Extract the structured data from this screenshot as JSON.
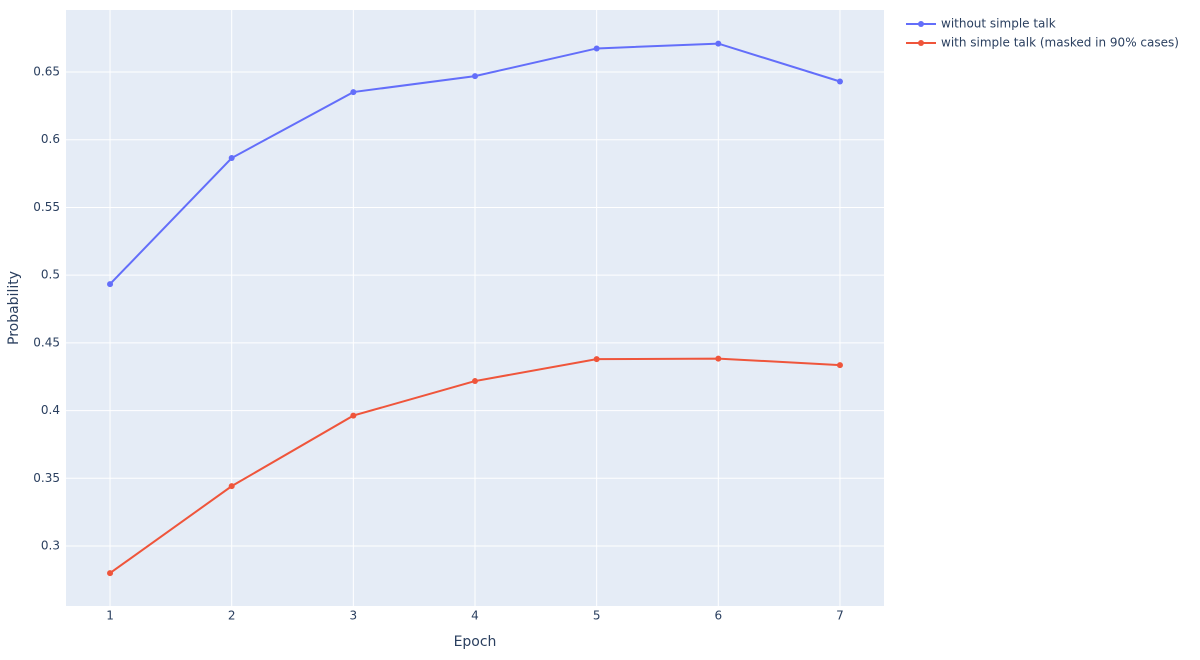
{
  "chart_data": {
    "type": "line",
    "x_label": "Epoch",
    "y_label": "Probability",
    "x": [
      1,
      2,
      3,
      4,
      5,
      6,
      7
    ],
    "series": [
      {
        "name": "without simple talk",
        "color": "#636efa",
        "values": [
          0.4934,
          0.5865,
          0.6352,
          0.647,
          0.6674,
          0.671,
          0.643
        ]
      },
      {
        "name": "with simple talk (masked in 90% cases)",
        "color": "#ef553b",
        "values": [
          0.28,
          0.3442,
          0.3963,
          0.4218,
          0.438,
          0.4384,
          0.4336
        ]
      }
    ],
    "xlim": [
      0.638,
      7.362
    ],
    "xticks": [
      1,
      2,
      3,
      4,
      5,
      6,
      7
    ],
    "ylim": [
      0.2557,
      0.6958
    ],
    "yticks": [
      0.3,
      0.35,
      0.4,
      0.45,
      0.5,
      0.55,
      0.6,
      0.65
    ],
    "grid": true,
    "legend": "top-right"
  }
}
